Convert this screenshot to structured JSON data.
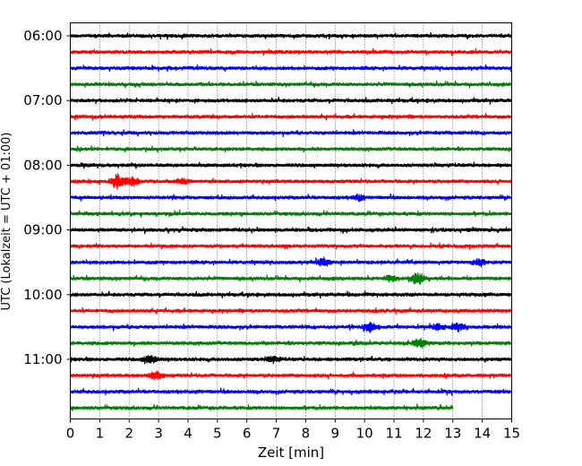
{
  "chart_data": {
    "type": "line",
    "xlabel": "Zeit  [min]",
    "ylabel": "UTC (Lokalzeit = UTC + 01:00)",
    "xlim": [
      0,
      15
    ],
    "x_ticks": [
      0,
      1,
      2,
      3,
      4,
      5,
      6,
      7,
      8,
      9,
      10,
      11,
      12,
      13,
      14,
      15
    ],
    "y_ticks": [
      "06:00",
      "07:00",
      "08:00",
      "09:00",
      "10:00",
      "11:00"
    ],
    "grid": "vertical dotted",
    "colors": [
      "#000000",
      "#ff0000",
      "#0000ff",
      "#008000"
    ],
    "series": [
      {
        "start": "06:00",
        "color": "#000000",
        "end_min": 15
      },
      {
        "start": "06:15",
        "color": "#ff0000",
        "end_min": 15
      },
      {
        "start": "06:30",
        "color": "#0000ff",
        "end_min": 15
      },
      {
        "start": "06:45",
        "color": "#008000",
        "end_min": 15
      },
      {
        "start": "07:00",
        "color": "#000000",
        "end_min": 15
      },
      {
        "start": "07:15",
        "color": "#ff0000",
        "end_min": 15
      },
      {
        "start": "07:30",
        "color": "#0000ff",
        "end_min": 15
      },
      {
        "start": "07:45",
        "color": "#008000",
        "end_min": 15
      },
      {
        "start": "08:00",
        "color": "#000000",
        "end_min": 15
      },
      {
        "start": "08:15",
        "color": "#ff0000",
        "end_min": 15,
        "events": [
          [
            1.6,
            8
          ],
          [
            2.1,
            5
          ],
          [
            3.8,
            3
          ]
        ]
      },
      {
        "start": "08:30",
        "color": "#0000ff",
        "end_min": 15,
        "events": [
          [
            9.8,
            3
          ]
        ]
      },
      {
        "start": "08:45",
        "color": "#008000",
        "end_min": 15
      },
      {
        "start": "09:00",
        "color": "#000000",
        "end_min": 15
      },
      {
        "start": "09:15",
        "color": "#ff0000",
        "end_min": 15
      },
      {
        "start": "09:30",
        "color": "#0000ff",
        "end_min": 15,
        "events": [
          [
            8.6,
            4
          ],
          [
            13.9,
            3
          ]
        ]
      },
      {
        "start": "09:45",
        "color": "#008000",
        "end_min": 15,
        "events": [
          [
            11.8,
            7
          ],
          [
            10.9,
            3
          ]
        ]
      },
      {
        "start": "10:00",
        "color": "#000000",
        "end_min": 15
      },
      {
        "start": "10:15",
        "color": "#ff0000",
        "end_min": 15
      },
      {
        "start": "10:30",
        "color": "#0000ff",
        "end_min": 15,
        "events": [
          [
            10.2,
            5
          ],
          [
            13.2,
            4
          ],
          [
            12.5,
            3
          ]
        ]
      },
      {
        "start": "10:45",
        "color": "#008000",
        "end_min": 15,
        "events": [
          [
            11.9,
            5
          ]
        ]
      },
      {
        "start": "11:00",
        "color": "#000000",
        "end_min": 15,
        "events": [
          [
            2.7,
            4
          ],
          [
            6.9,
            3
          ]
        ]
      },
      {
        "start": "11:15",
        "color": "#ff0000",
        "end_min": 15,
        "events": [
          [
            2.9,
            4
          ]
        ]
      },
      {
        "start": "11:30",
        "color": "#0000ff",
        "end_min": 15
      },
      {
        "start": "11:45",
        "color": "#008000",
        "end_min": 13
      }
    ]
  }
}
